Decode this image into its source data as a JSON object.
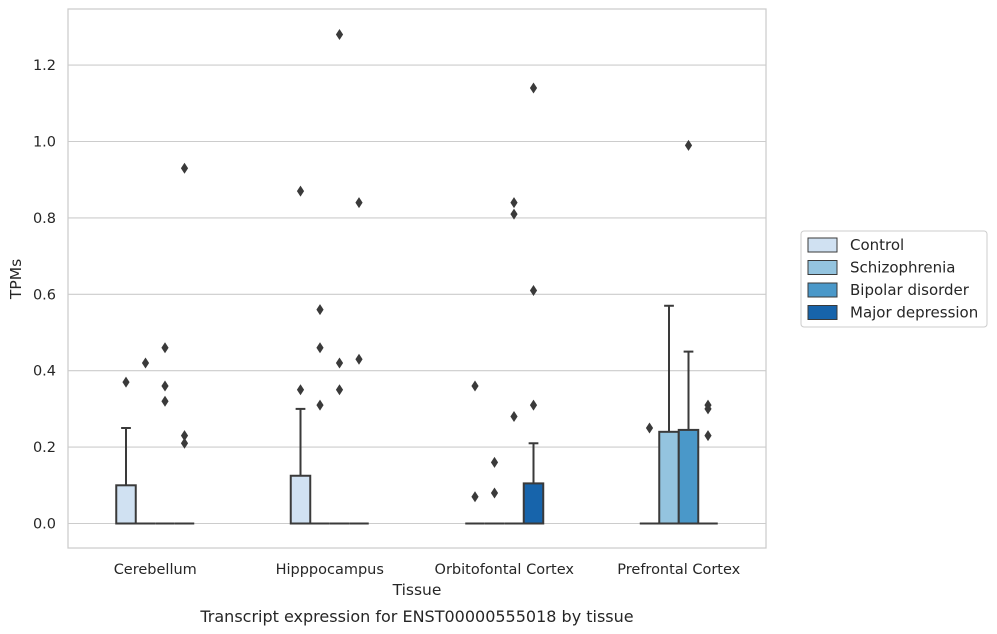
{
  "chart_data": {
    "type": "box",
    "title": "",
    "caption": "Transcript expression for ENST00000555018 by tissue",
    "xlabel": "Tissue",
    "ylabel": "TPMs",
    "ylim": [
      -0.06,
      1.35
    ],
    "yticks": [
      "0.0",
      "0.2",
      "0.4",
      "0.6",
      "0.8",
      "1.0",
      "1.2"
    ],
    "ytick_values": [
      0,
      0.2,
      0.4,
      0.6,
      0.8,
      1.0,
      1.2
    ],
    "grid": "horizontal",
    "legend_position": "right",
    "categories": [
      "Cerebellum",
      "Hipppocampus",
      "Orbitofontal Cortex",
      "Prefrontal Cortex"
    ],
    "series": [
      {
        "name": "Control",
        "color": "#d0e1f2",
        "boxes": [
          {
            "q1": 0,
            "median": 0,
            "q3": 0.1,
            "whisker_low": 0,
            "whisker_high": 0.25,
            "outliers": [
              0.37
            ]
          },
          {
            "q1": 0,
            "median": 0,
            "q3": 0.125,
            "whisker_low": 0,
            "whisker_high": 0.3,
            "outliers": [
              0.35,
              0.87
            ]
          },
          {
            "q1": 0,
            "median": 0,
            "q3": 0,
            "whisker_low": 0,
            "whisker_high": 0,
            "outliers": [
              0.07,
              0.36
            ]
          },
          {
            "q1": 0,
            "median": 0,
            "q3": 0,
            "whisker_low": 0,
            "whisker_high": 0,
            "outliers": [
              0.25
            ]
          }
        ]
      },
      {
        "name": "Schizophrenia",
        "color": "#94c4df",
        "boxes": [
          {
            "q1": 0,
            "median": 0,
            "q3": 0,
            "whisker_low": 0,
            "whisker_high": 0,
            "outliers": [
              0.42
            ]
          },
          {
            "q1": 0,
            "median": 0,
            "q3": 0,
            "whisker_low": 0,
            "whisker_high": 0,
            "outliers": [
              0.31,
              0.46,
              0.56
            ]
          },
          {
            "q1": 0,
            "median": 0,
            "q3": 0,
            "whisker_low": 0,
            "whisker_high": 0,
            "outliers": [
              0.08,
              0.16
            ]
          },
          {
            "q1": 0,
            "median": 0,
            "q3": 0.24,
            "whisker_low": 0,
            "whisker_high": 0.57,
            "outliers": []
          }
        ]
      },
      {
        "name": "Bipolar disorder",
        "color": "#4a98c9",
        "boxes": [
          {
            "q1": 0,
            "median": 0,
            "q3": 0,
            "whisker_low": 0,
            "whisker_high": 0,
            "outliers": [
              0.32,
              0.36,
              0.46
            ]
          },
          {
            "q1": 0,
            "median": 0,
            "q3": 0,
            "whisker_low": 0,
            "whisker_high": 0,
            "outliers": [
              0.35,
              0.42,
              1.28
            ]
          },
          {
            "q1": 0,
            "median": 0,
            "q3": 0,
            "whisker_low": 0,
            "whisker_high": 0,
            "outliers": [
              0.28,
              0.81,
              0.84
            ]
          },
          {
            "q1": 0,
            "median": 0,
            "q3": 0.245,
            "whisker_low": 0,
            "whisker_high": 0.45,
            "outliers": [
              0.99
            ]
          }
        ]
      },
      {
        "name": "Major depression",
        "color": "#1764ab",
        "boxes": [
          {
            "q1": 0,
            "median": 0,
            "q3": 0,
            "whisker_low": 0,
            "whisker_high": 0,
            "outliers": [
              0.21,
              0.23,
              0.93
            ]
          },
          {
            "q1": 0,
            "median": 0,
            "q3": 0,
            "whisker_low": 0,
            "whisker_high": 0,
            "outliers": [
              0.43,
              0.84
            ]
          },
          {
            "q1": 0,
            "median": 0,
            "q3": 0.105,
            "whisker_low": 0,
            "whisker_high": 0.21,
            "outliers": [
              0.31,
              0.61,
              1.14
            ]
          },
          {
            "q1": 0,
            "median": 0,
            "q3": 0,
            "whisker_low": 0,
            "whisker_high": 0,
            "outliers": [
              0.23,
              0.3,
              0.31
            ]
          }
        ]
      }
    ]
  }
}
